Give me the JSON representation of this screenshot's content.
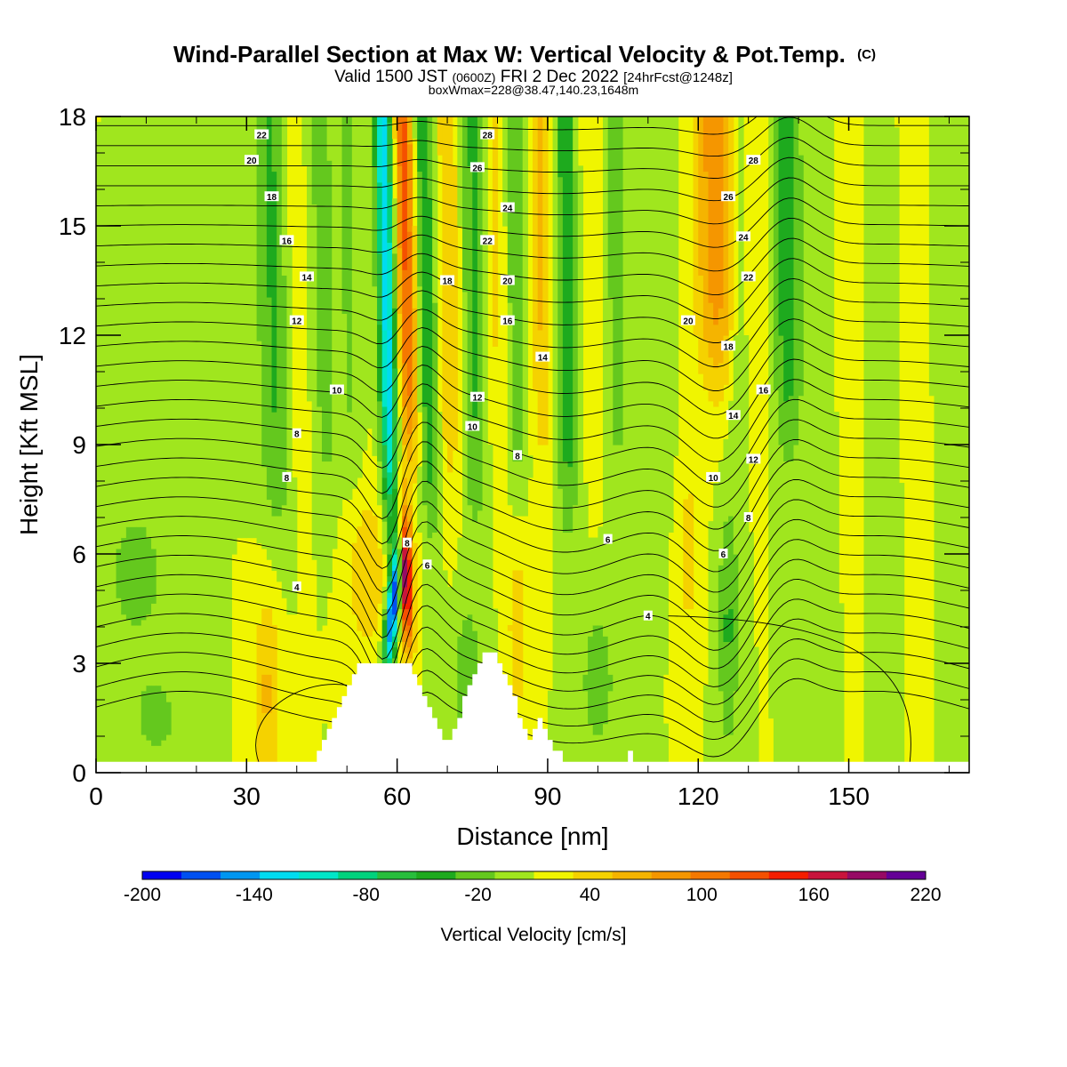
{
  "chart_data": {
    "type": "heatmap",
    "title": "Wind-Parallel Section at Max W: Vertical Velocity & Pot.Temp.",
    "title_mark": "(C)",
    "subtitle": {
      "prefix": "Valid 1500 JST",
      "utc": "(0600Z)",
      "date": "FRI 2 Dec 2022",
      "fcst": "[24hrFcst@1248z]"
    },
    "info_line": "boxWmax=228@38.47,140.23,1648m",
    "xlabel": "Distance [nm]",
    "ylabel": "Height [Kft MSL]",
    "xlim": [
      0,
      174
    ],
    "ylim": [
      0,
      18
    ],
    "x_ticks": [
      "0",
      "30",
      "60",
      "90",
      "120",
      "150"
    ],
    "y_ticks": [
      "0",
      "3",
      "6",
      "9",
      "12",
      "15",
      "18"
    ],
    "colorbar": {
      "label": "Vertical Velocity [cm/s]",
      "tick_labels": [
        "-200",
        "-140",
        "-80",
        "-20",
        "40",
        "100",
        "160",
        "220"
      ],
      "colors": [
        "#0000f0",
        "#0050f0",
        "#0096f0",
        "#00dcf0",
        "#00e6c8",
        "#00d27d",
        "#28be3c",
        "#1eaa1e",
        "#64c81e",
        "#a0e61e",
        "#f0f500",
        "#f5d200",
        "#f5b400",
        "#f59600",
        "#f57800",
        "#f55000",
        "#f51e00",
        "#c8143c",
        "#960a64",
        "#640096"
      ]
    },
    "features": {
      "lee_wave_updraft_max": 220,
      "downdraft_min": -200,
      "terrain_peaks_kft": [
        {
          "x": 60,
          "h": 3.1
        },
        {
          "x": 78,
          "h": 3.2
        },
        {
          "x": 106,
          "h": 0.6
        }
      ]
    },
    "contour_labels": [
      {
        "x": 33,
        "y": 17.5,
        "text": "22"
      },
      {
        "x": 31,
        "y": 16.8,
        "text": "20"
      },
      {
        "x": 35,
        "y": 15.8,
        "text": "18"
      },
      {
        "x": 38,
        "y": 14.6,
        "text": "16"
      },
      {
        "x": 42,
        "y": 13.6,
        "text": "14"
      },
      {
        "x": 40,
        "y": 12.4,
        "text": "12"
      },
      {
        "x": 48,
        "y": 10.5,
        "text": "10"
      },
      {
        "x": 40,
        "y": 9.3,
        "text": "8"
      },
      {
        "x": 38,
        "y": 8.1,
        "text": "8"
      },
      {
        "x": 40,
        "y": 5.1,
        "text": "4"
      },
      {
        "x": 62,
        "y": 6.3,
        "text": "8"
      },
      {
        "x": 66,
        "y": 5.7,
        "text": "6"
      },
      {
        "x": 78,
        "y": 17.5,
        "text": "28"
      },
      {
        "x": 76,
        "y": 16.6,
        "text": "26"
      },
      {
        "x": 82,
        "y": 15.5,
        "text": "24"
      },
      {
        "x": 78,
        "y": 14.6,
        "text": "22"
      },
      {
        "x": 70,
        "y": 13.5,
        "text": "18"
      },
      {
        "x": 82,
        "y": 13.5,
        "text": "20"
      },
      {
        "x": 82,
        "y": 12.4,
        "text": "16"
      },
      {
        "x": 89,
        "y": 11.4,
        "text": "14"
      },
      {
        "x": 76,
        "y": 10.3,
        "text": "12"
      },
      {
        "x": 75,
        "y": 9.5,
        "text": "10"
      },
      {
        "x": 84,
        "y": 8.7,
        "text": "8"
      },
      {
        "x": 102,
        "y": 6.4,
        "text": "6"
      },
      {
        "x": 110,
        "y": 4.3,
        "text": "4"
      },
      {
        "x": 131,
        "y": 16.8,
        "text": "28"
      },
      {
        "x": 126,
        "y": 15.8,
        "text": "26"
      },
      {
        "x": 129,
        "y": 14.7,
        "text": "24"
      },
      {
        "x": 130,
        "y": 13.6,
        "text": "22"
      },
      {
        "x": 118,
        "y": 12.4,
        "text": "20"
      },
      {
        "x": 126,
        "y": 11.7,
        "text": "18"
      },
      {
        "x": 133,
        "y": 10.5,
        "text": "16"
      },
      {
        "x": 127,
        "y": 9.8,
        "text": "14"
      },
      {
        "x": 131,
        "y": 8.6,
        "text": "12"
      },
      {
        "x": 123,
        "y": 8.1,
        "text": "10"
      },
      {
        "x": 130,
        "y": 7.0,
        "text": "8"
      },
      {
        "x": 125,
        "y": 6.0,
        "text": "6"
      }
    ]
  }
}
